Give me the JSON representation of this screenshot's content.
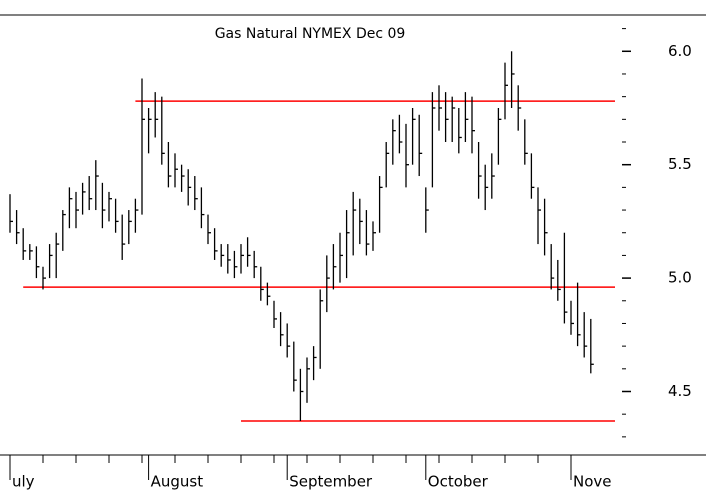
{
  "chart_data": {
    "type": "hlc",
    "title": "Gas Natural NYMEX Dec 09",
    "categories": [
      "uly",
      null,
      null,
      null,
      null,
      null,
      null,
      null,
      null,
      null,
      null,
      null,
      null,
      null,
      null,
      null,
      null,
      null,
      null,
      null,
      null,
      "August",
      null,
      null,
      null,
      null,
      null,
      null,
      null,
      null,
      null,
      null,
      null,
      null,
      null,
      null,
      null,
      null,
      null,
      null,
      null,
      null,
      "September",
      null,
      null,
      null,
      null,
      null,
      null,
      null,
      null,
      null,
      null,
      null,
      null,
      null,
      null,
      null,
      null,
      null,
      null,
      null,
      null,
      "October",
      null,
      null,
      null,
      null,
      null,
      null,
      null,
      null,
      null,
      null,
      null,
      null,
      null,
      null,
      null,
      null,
      null,
      null,
      null,
      null,
      null,
      "Nove",
      null,
      null,
      null
    ],
    "high": [
      5.37,
      5.3,
      5.22,
      5.15,
      5.14,
      5.05,
      5.15,
      5.2,
      5.3,
      5.4,
      5.38,
      5.42,
      5.45,
      5.52,
      5.42,
      5.38,
      5.35,
      5.28,
      5.3,
      5.35,
      5.88,
      5.75,
      5.82,
      5.8,
      5.6,
      5.55,
      5.5,
      5.48,
      5.45,
      5.4,
      5.28,
      5.22,
      5.15,
      5.15,
      5.12,
      5.15,
      5.18,
      5.12,
      5.05,
      4.98,
      4.9,
      4.85,
      4.8,
      4.72,
      4.6,
      4.65,
      4.7,
      4.95,
      5.1,
      5.15,
      5.2,
      5.3,
      5.38,
      5.35,
      5.3,
      5.25,
      5.45,
      5.6,
      5.7,
      5.72,
      5.68,
      5.75,
      5.72,
      5.4,
      5.82,
      5.85,
      5.82,
      5.8,
      5.75,
      5.82,
      5.8,
      5.6,
      5.5,
      5.55,
      5.75,
      5.95,
      6.0,
      5.85,
      5.7,
      5.55,
      5.4,
      5.35,
      5.15,
      5.08,
      5.2,
      4.9,
      4.98,
      4.85,
      4.82
    ],
    "low": [
      5.2,
      5.15,
      5.08,
      5.08,
      5.0,
      4.95,
      5.0,
      5.0,
      5.12,
      5.22,
      5.22,
      5.28,
      5.3,
      5.3,
      5.22,
      5.25,
      5.2,
      5.08,
      5.15,
      5.2,
      5.28,
      5.55,
      5.62,
      5.5,
      5.4,
      5.4,
      5.38,
      5.32,
      5.3,
      5.22,
      5.15,
      5.08,
      5.05,
      5.02,
      5.0,
      5.02,
      5.05,
      5.0,
      4.9,
      4.88,
      4.78,
      4.7,
      4.65,
      4.5,
      4.37,
      4.45,
      4.55,
      4.6,
      4.85,
      4.95,
      4.98,
      5.0,
      5.1,
      5.15,
      5.1,
      5.12,
      5.2,
      5.4,
      5.5,
      5.55,
      5.4,
      5.5,
      5.45,
      5.2,
      5.4,
      5.65,
      5.6,
      5.6,
      5.55,
      5.6,
      5.55,
      5.35,
      5.3,
      5.35,
      5.5,
      5.7,
      5.75,
      5.65,
      5.5,
      5.35,
      5.15,
      5.1,
      4.95,
      4.9,
      4.8,
      4.75,
      4.7,
      4.65,
      4.58
    ],
    "close": [
      5.25,
      5.2,
      5.12,
      5.12,
      5.05,
      5.0,
      5.1,
      5.15,
      5.28,
      5.35,
      5.3,
      5.38,
      5.35,
      5.45,
      5.3,
      5.35,
      5.25,
      5.15,
      5.25,
      5.3,
      5.7,
      5.7,
      5.7,
      5.55,
      5.45,
      5.48,
      5.45,
      5.4,
      5.35,
      5.28,
      5.2,
      5.12,
      5.1,
      5.08,
      5.05,
      5.1,
      5.1,
      5.05,
      4.95,
      4.92,
      4.82,
      4.75,
      4.7,
      4.55,
      4.5,
      4.6,
      4.65,
      4.9,
      5.0,
      5.05,
      5.1,
      5.2,
      5.3,
      5.25,
      5.15,
      5.2,
      5.4,
      5.55,
      5.65,
      5.6,
      5.5,
      5.7,
      5.55,
      5.3,
      5.75,
      5.75,
      5.7,
      5.75,
      5.62,
      5.7,
      5.65,
      5.45,
      5.4,
      5.45,
      5.7,
      5.85,
      5.9,
      5.75,
      5.55,
      5.4,
      5.3,
      5.2,
      5.0,
      4.95,
      4.85,
      4.8,
      4.75,
      4.7,
      4.62
    ],
    "color": "#000000",
    "ylim": [
      4.22,
      6.16
    ],
    "yticks": [
      4.5,
      {
        "value": 5,
        "label": "5.0"
      },
      5.5,
      {
        "value": 6,
        "label": "6.0"
      }
    ],
    "yticks_minor": [
      4.3,
      4.4,
      4.6,
      4.7,
      4.8,
      4.9,
      5.1,
      5.2,
      5.3,
      5.4,
      5.6,
      5.7,
      5.8,
      5.9,
      6.1
    ],
    "xtick_every": 5,
    "hlines": [
      {
        "value": 5.78,
        "start": 19
      },
      {
        "value": 4.96,
        "start": 2
      },
      {
        "value": 4.37,
        "start": 35
      }
    ],
    "hline_color": "#ff0000"
  }
}
